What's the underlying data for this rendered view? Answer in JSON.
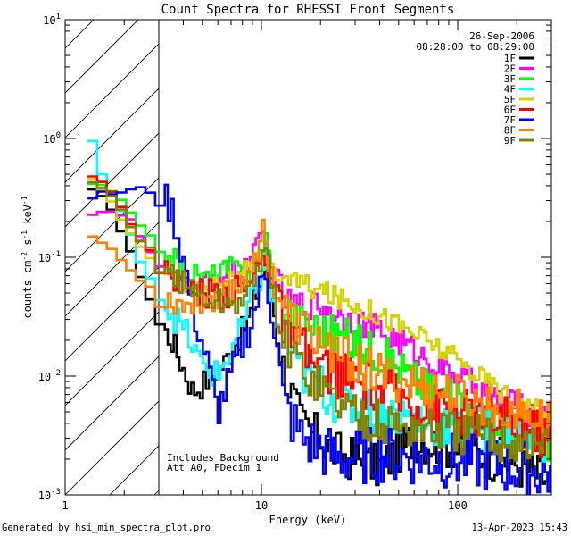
{
  "chart_data": {
    "type": "line",
    "title": "Count Spectra for RHESSI Front Segments",
    "xlabel": "Energy (keV)",
    "ylabel_main": "counts cm",
    "ylabel_exp1": "-2",
    "ylabel_s": " s",
    "ylabel_exp2": "-1",
    "ylabel_kev": " keV",
    "ylabel_exp3": "-1",
    "xscale": "log",
    "yscale": "log",
    "xlim": [
      1,
      300
    ],
    "ylim": [
      0.001,
      10
    ],
    "hatch_region_kev": [
      1,
      3
    ],
    "x_ticks": [
      {
        "value": 1,
        "label": "1"
      },
      {
        "value": 10,
        "label": "10"
      },
      {
        "value": 100,
        "label": "100"
      }
    ],
    "y_ticks": [
      {
        "value": 10,
        "mant": "10",
        "exp": "1"
      },
      {
        "value": 1,
        "mant": "10",
        "exp": "0"
      },
      {
        "value": 0.1,
        "mant": "10",
        "exp": "-1"
      },
      {
        "value": 0.01,
        "mant": "10",
        "exp": "-2"
      },
      {
        "value": 0.001,
        "mant": "10",
        "exp": "-3"
      }
    ],
    "date": "26-Sep-2006",
    "time_range": "08:28:00 to 08:29:00",
    "annotations": [
      "Includes Background",
      "Att A0, FDecim 1"
    ],
    "footer_left": "Generated by hsi_min_spectra_plot.pro",
    "footer_right": "13-Apr-2023 15:43",
    "series": [
      {
        "name": "1F",
        "color": "#000000",
        "start": 0.38,
        "anchors": [
          [
            1.3,
            0.38
          ],
          [
            1.7,
            0.28
          ],
          [
            2.1,
            0.12
          ],
          [
            2.6,
            0.055
          ],
          [
            3.0,
            0.028
          ],
          [
            3.5,
            0.02
          ],
          [
            4.0,
            0.012
          ],
          [
            4.5,
            0.0075
          ],
          [
            5.2,
            0.009
          ],
          [
            6.5,
            0.013
          ],
          [
            8.5,
            0.028
          ],
          [
            10.5,
            0.085
          ],
          [
            11.5,
            0.04
          ],
          [
            13,
            0.012
          ],
          [
            16,
            0.004
          ],
          [
            25,
            0.0022
          ],
          [
            40,
            0.0017
          ],
          [
            60,
            0.003
          ],
          [
            100,
            0.0025
          ],
          [
            200,
            0.0018
          ],
          [
            300,
            0.0013
          ]
        ],
        "noise": 0.28
      },
      {
        "name": "2F",
        "color": "#ff00ff",
        "start": 0.23,
        "anchors": [
          [
            1.3,
            0.23
          ],
          [
            1.7,
            0.25
          ],
          [
            2.2,
            0.2
          ],
          [
            2.8,
            0.1
          ],
          [
            3.5,
            0.065
          ],
          [
            4.5,
            0.055
          ],
          [
            6,
            0.07
          ],
          [
            8,
            0.08
          ],
          [
            10.3,
            0.15
          ],
          [
            11.5,
            0.07
          ],
          [
            14,
            0.04
          ],
          [
            20,
            0.04
          ],
          [
            30,
            0.03
          ],
          [
            50,
            0.02
          ],
          [
            80,
            0.012
          ],
          [
            150,
            0.007
          ],
          [
            300,
            0.004
          ]
        ],
        "noise": 0.18
      },
      {
        "name": "3F",
        "color": "#00ff00",
        "start": 0.44,
        "anchors": [
          [
            1.3,
            0.44
          ],
          [
            1.8,
            0.35
          ],
          [
            2.3,
            0.2
          ],
          [
            3,
            0.12
          ],
          [
            4,
            0.08
          ],
          [
            5,
            0.065
          ],
          [
            7,
            0.08
          ],
          [
            9,
            0.075
          ],
          [
            10.5,
            0.15
          ],
          [
            12,
            0.05
          ],
          [
            15,
            0.03
          ],
          [
            25,
            0.022
          ],
          [
            40,
            0.016
          ],
          [
            70,
            0.008
          ],
          [
            150,
            0.004
          ],
          [
            300,
            0.0025
          ]
        ],
        "noise": 0.25
      },
      {
        "name": "4F",
        "color": "#00ffff",
        "start": 1.35,
        "anchors": [
          [
            1.3,
            1.35
          ],
          [
            1.5,
            0.55
          ],
          [
            1.9,
            0.25
          ],
          [
            2.4,
            0.1
          ],
          [
            3,
            0.05
          ],
          [
            3.6,
            0.032
          ],
          [
            4.2,
            0.022
          ],
          [
            5,
            0.012
          ],
          [
            6,
            0.01
          ],
          [
            8,
            0.025
          ],
          [
            10.5,
            0.09
          ],
          [
            12,
            0.03
          ],
          [
            15,
            0.012
          ],
          [
            25,
            0.006
          ],
          [
            40,
            0.005
          ],
          [
            80,
            0.004
          ],
          [
            150,
            0.0035
          ],
          [
            300,
            0.003
          ]
        ],
        "noise": 0.3
      },
      {
        "name": "5F",
        "color": "#d2d200",
        "start": 0.5,
        "anchors": [
          [
            1.3,
            0.5
          ],
          [
            1.7,
            0.3
          ],
          [
            2.2,
            0.15
          ],
          [
            3,
            0.08
          ],
          [
            4,
            0.055
          ],
          [
            5,
            0.055
          ],
          [
            6.5,
            0.065
          ],
          [
            8,
            0.08
          ],
          [
            10,
            0.09
          ],
          [
            12,
            0.075
          ],
          [
            16,
            0.06
          ],
          [
            25,
            0.045
          ],
          [
            40,
            0.033
          ],
          [
            70,
            0.02
          ],
          [
            120,
            0.011
          ],
          [
            200,
            0.006
          ],
          [
            300,
            0.0045
          ]
        ],
        "noise": 0.14
      },
      {
        "name": "6F",
        "color": "#ff0000",
        "start": 0.55,
        "anchors": [
          [
            1.3,
            0.55
          ],
          [
            1.8,
            0.35
          ],
          [
            2.3,
            0.15
          ],
          [
            3,
            0.09
          ],
          [
            4,
            0.06
          ],
          [
            5,
            0.05
          ],
          [
            7,
            0.05
          ],
          [
            9,
            0.06
          ],
          [
            10.3,
            0.13
          ],
          [
            11.5,
            0.05
          ],
          [
            14,
            0.02
          ],
          [
            20,
            0.012
          ],
          [
            35,
            0.008
          ],
          [
            60,
            0.006
          ],
          [
            100,
            0.005
          ],
          [
            200,
            0.004
          ],
          [
            300,
            0.003
          ]
        ],
        "noise": 0.3
      },
      {
        "name": "7F",
        "color": "#0000ff",
        "start": 0.32,
        "anchors": [
          [
            1.3,
            0.32
          ],
          [
            1.8,
            0.35
          ],
          [
            2.3,
            0.37
          ],
          [
            3,
            0.36
          ],
          [
            3.5,
            0.25
          ],
          [
            4,
            0.1
          ],
          [
            4.5,
            0.035
          ],
          [
            5.2,
            0.015
          ],
          [
            6,
            0.005
          ],
          [
            7,
            0.01
          ],
          [
            9,
            0.03
          ],
          [
            10.5,
            0.08
          ],
          [
            11.5,
            0.03
          ],
          [
            13,
            0.006
          ],
          [
            16,
            0.003
          ],
          [
            25,
            0.002
          ],
          [
            40,
            0.0022
          ],
          [
            80,
            0.002
          ],
          [
            150,
            0.0018
          ],
          [
            300,
            0.0015
          ]
        ],
        "noise": 0.35
      },
      {
        "name": "8F",
        "color": "#ff8000",
        "start": 0.16,
        "anchors": [
          [
            1.3,
            0.16
          ],
          [
            1.7,
            0.12
          ],
          [
            2.1,
            0.08
          ],
          [
            2.6,
            0.06
          ],
          [
            3.2,
            0.045
          ],
          [
            4,
            0.04
          ],
          [
            5.5,
            0.045
          ],
          [
            8,
            0.06
          ],
          [
            10.3,
            0.17
          ],
          [
            11.5,
            0.06
          ],
          [
            14,
            0.03
          ],
          [
            25,
            0.015
          ],
          [
            40,
            0.01
          ],
          [
            70,
            0.008
          ],
          [
            120,
            0.006
          ],
          [
            200,
            0.005
          ],
          [
            300,
            0.004
          ]
        ],
        "noise": 0.28
      },
      {
        "name": "9F",
        "color": "#808000",
        "start": 0.45,
        "anchors": [
          [
            1.3,
            0.45
          ],
          [
            1.8,
            0.3
          ],
          [
            2.3,
            0.15
          ],
          [
            3,
            0.1
          ],
          [
            4,
            0.06
          ],
          [
            5,
            0.045
          ],
          [
            7,
            0.04
          ],
          [
            9,
            0.05
          ],
          [
            10.3,
            0.14
          ],
          [
            11.5,
            0.05
          ],
          [
            14,
            0.015
          ],
          [
            25,
            0.006
          ],
          [
            40,
            0.004
          ],
          [
            80,
            0.0035
          ],
          [
            150,
            0.003
          ],
          [
            300,
            0.0025
          ]
        ],
        "noise": 0.28
      }
    ]
  }
}
